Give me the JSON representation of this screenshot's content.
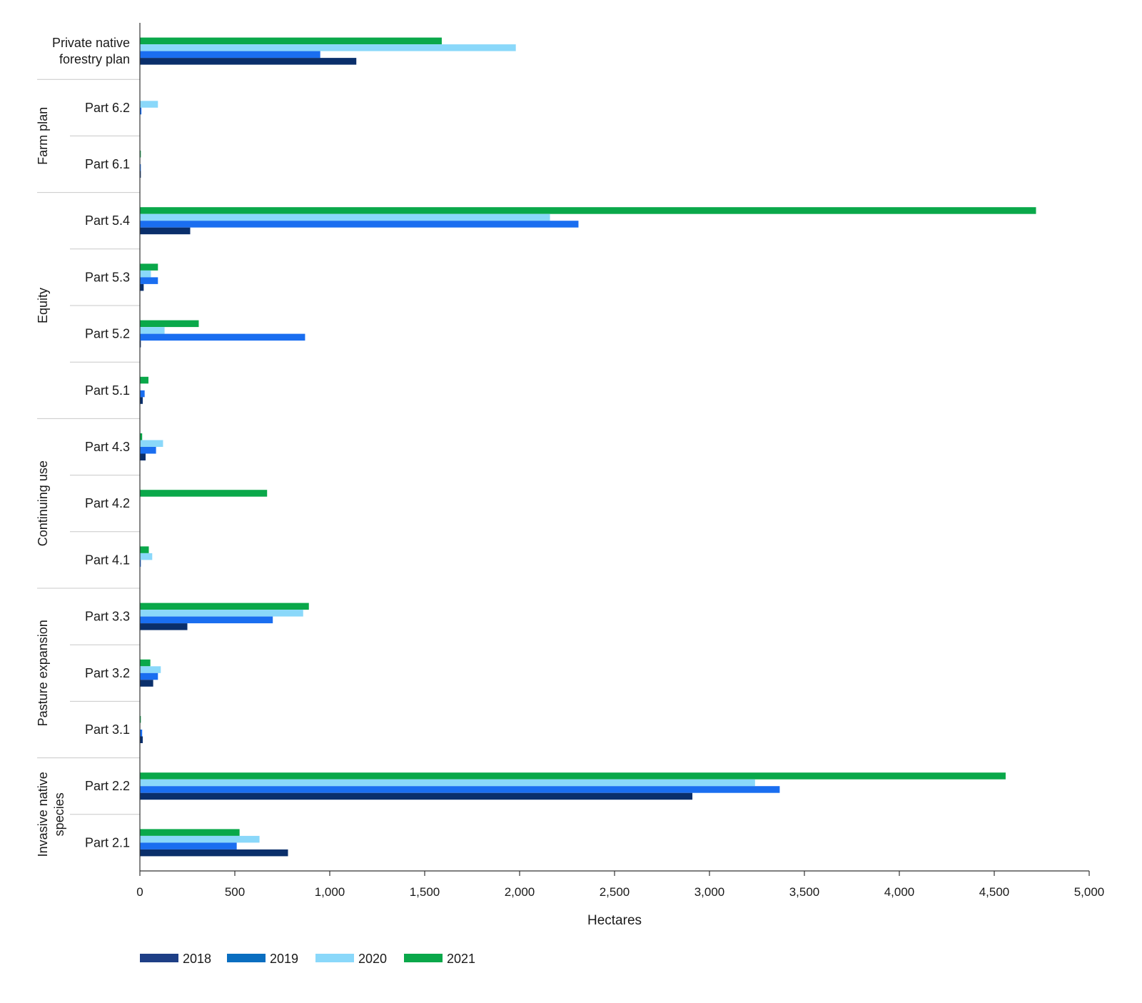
{
  "chart_data": {
    "type": "bar",
    "orientation": "horizontal",
    "xlabel": "Hectares",
    "xlim": [
      0,
      5000
    ],
    "xticks": [
      0,
      500,
      1000,
      1500,
      2000,
      2500,
      3000,
      3500,
      4000,
      4500,
      5000
    ],
    "xtick_labels": [
      "0",
      "500",
      "1,000",
      "1,500",
      "2,000",
      "2,500",
      "3,000",
      "3,500",
      "4,000",
      "4,500",
      "5,000"
    ],
    "grid": false,
    "legend_position": "bottom-left",
    "categories": [
      "Private native forestry plan",
      "Part 6.2",
      "Part 6.1",
      "Part 5.4",
      "Part 5.3",
      "Part 5.2",
      "Part 5.1",
      "Part 4.3",
      "Part 4.2",
      "Part 4.1",
      "Part 3.3",
      "Part 3.2",
      "Part 3.1",
      "Part 2.2",
      "Part 2.1"
    ],
    "category_lines": [
      [
        "Private native",
        "forestry plan"
      ],
      [
        "Part 6.2"
      ],
      [
        "Part 6.1"
      ],
      [
        "Part 5.4"
      ],
      [
        "Part 5.3"
      ],
      [
        "Part 5.2"
      ],
      [
        "Part 5.1"
      ],
      [
        "Part 4.3"
      ],
      [
        "Part 4.2"
      ],
      [
        "Part 4.1"
      ],
      [
        "Part 3.3"
      ],
      [
        "Part 3.2"
      ],
      [
        "Part 3.1"
      ],
      [
        "Part 2.2"
      ],
      [
        "Part 2.1"
      ]
    ],
    "groups": [
      {
        "name": "Farm plan",
        "lines": [
          "Farm plan"
        ],
        "categories": [
          "Part 6.2",
          "Part 6.1"
        ]
      },
      {
        "name": "Equity",
        "lines": [
          "Equity"
        ],
        "categories": [
          "Part 5.4",
          "Part 5.3",
          "Part 5.2",
          "Part 5.1"
        ]
      },
      {
        "name": "Continuing use",
        "lines": [
          "Continuing use"
        ],
        "categories": [
          "Part 4.3",
          "Part 4.2",
          "Part 4.1"
        ]
      },
      {
        "name": "Pasture expansion",
        "lines": [
          "Pasture expansion"
        ],
        "categories": [
          "Part 3.3",
          "Part 3.2",
          "Part 3.1"
        ]
      },
      {
        "name": "Invasive native species",
        "lines": [
          "Invasive native",
          "species"
        ],
        "categories": [
          "Part 2.2",
          "Part 2.1"
        ]
      }
    ],
    "series": [
      {
        "name": "2018",
        "color": "#0a2f6b",
        "legend_color": "#1e3f86",
        "values": [
          1140,
          0,
          5,
          265,
          20,
          5,
          15,
          30,
          0,
          0,
          250,
          70,
          15,
          2910,
          780
        ]
      },
      {
        "name": "2019",
        "color": "#1a6ef0",
        "legend_color": "#0a6ec0",
        "values": [
          950,
          8,
          5,
          2310,
          95,
          870,
          25,
          85,
          0,
          5,
          700,
          95,
          12,
          3370,
          510
        ]
      },
      {
        "name": "2020",
        "color": "#8ad8fa",
        "legend_color": "#8ad8fa",
        "values": [
          1980,
          95,
          0,
          2160,
          58,
          130,
          0,
          122,
          0,
          65,
          860,
          110,
          0,
          3240,
          630
        ]
      },
      {
        "name": "2021",
        "color": "#0aa84a",
        "legend_color": "#0aa84a",
        "values": [
          1590,
          0,
          5,
          4720,
          95,
          310,
          45,
          12,
          670,
          47,
          890,
          55,
          5,
          4560,
          525
        ]
      }
    ]
  }
}
